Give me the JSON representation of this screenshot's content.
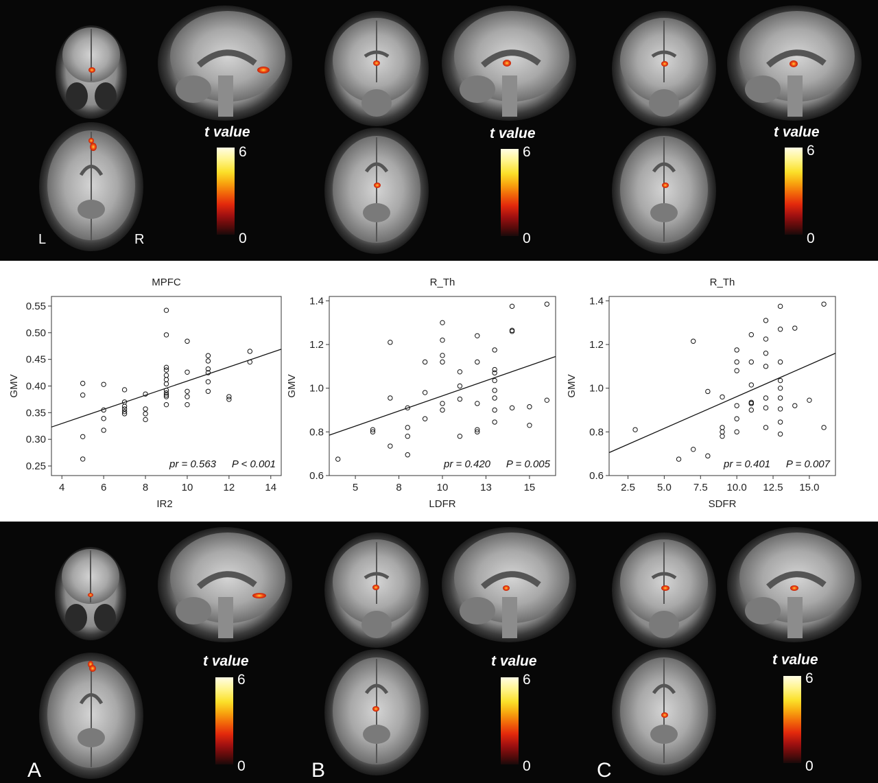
{
  "top_row": {
    "colorbars": [
      {
        "title": "t value",
        "max": "6",
        "min": "0"
      },
      {
        "title": "t value",
        "max": "6",
        "min": "0"
      },
      {
        "title": "t value",
        "max": "6",
        "min": "0"
      }
    ],
    "orientation": {
      "left": "L",
      "right": "R"
    }
  },
  "bottom_row": {
    "colorbars": [
      {
        "title": "t value",
        "max": "6",
        "min": "0"
      },
      {
        "title": "t value",
        "max": "6",
        "min": "0"
      },
      {
        "title": "t value",
        "max": "6",
        "min": "0"
      }
    ],
    "panel_labels": [
      "A",
      "B",
      "C"
    ]
  },
  "colors": {
    "background": "#070707",
    "activation": "#f04a12",
    "highlight": "#ffd23a"
  },
  "chart_data": [
    {
      "type": "scatter",
      "title": "MPFC",
      "xlabel": "IR2",
      "ylabel": "GMV",
      "xlim": [
        3.5,
        14.5
      ],
      "ylim": [
        0.232,
        0.568
      ],
      "xticks": [
        "4",
        "6",
        "8",
        "10",
        "12",
        "14"
      ],
      "xtick_values": [
        4,
        6,
        8,
        10,
        12,
        14
      ],
      "yticks": [
        "0.25",
        "0.30",
        "0.35",
        "0.40",
        "0.45",
        "0.50",
        "0.55"
      ],
      "ytick_values": [
        0.25,
        0.3,
        0.35,
        0.4,
        0.45,
        0.5,
        0.55
      ],
      "annotation_pr": "pr = 0.563",
      "annotation_p": "P < 0.001",
      "regression": {
        "x1": 3.5,
        "y1": 0.323,
        "x2": 14.5,
        "y2": 0.469
      },
      "points": [
        [
          5,
          0.405
        ],
        [
          5,
          0.383
        ],
        [
          5,
          0.305
        ],
        [
          5,
          0.263
        ],
        [
          6,
          0.403
        ],
        [
          6,
          0.355
        ],
        [
          6,
          0.339
        ],
        [
          6,
          0.317
        ],
        [
          7,
          0.393
        ],
        [
          7,
          0.37
        ],
        [
          7,
          0.362
        ],
        [
          7,
          0.357
        ],
        [
          7,
          0.352
        ],
        [
          7,
          0.348
        ],
        [
          8,
          0.385
        ],
        [
          8,
          0.357
        ],
        [
          8,
          0.348
        ],
        [
          8,
          0.337
        ],
        [
          9,
          0.542
        ],
        [
          9,
          0.496
        ],
        [
          9,
          0.435
        ],
        [
          9,
          0.43
        ],
        [
          9,
          0.42
        ],
        [
          9,
          0.412
        ],
        [
          9,
          0.404
        ],
        [
          9,
          0.392
        ],
        [
          9,
          0.387
        ],
        [
          9,
          0.383
        ],
        [
          9,
          0.38
        ],
        [
          9,
          0.365
        ],
        [
          10,
          0.484
        ],
        [
          10,
          0.426
        ],
        [
          10,
          0.39
        ],
        [
          10,
          0.38
        ],
        [
          10,
          0.365
        ],
        [
          11,
          0.457
        ],
        [
          11,
          0.447
        ],
        [
          11,
          0.432
        ],
        [
          11,
          0.425
        ],
        [
          11,
          0.408
        ],
        [
          11,
          0.39
        ],
        [
          12,
          0.38
        ],
        [
          12,
          0.375
        ],
        [
          13,
          0.465
        ],
        [
          13,
          0.445
        ]
      ]
    },
    {
      "type": "scatter",
      "title": "R_Th",
      "xlabel": "LDFR",
      "ylabel": "GMV",
      "xlim": [
        3.5,
        16.5
      ],
      "ylim": [
        0.6,
        1.42
      ],
      "xticks": [
        "5",
        "8",
        "10",
        "13",
        "15"
      ],
      "xtick_values": [
        5,
        7.5,
        10,
        12.5,
        15
      ],
      "yticks": [
        "0.6",
        "0.8",
        "1.0",
        "1.2",
        "1.4"
      ],
      "ytick_values": [
        0.6,
        0.8,
        1.0,
        1.2,
        1.4
      ],
      "annotation_pr": "pr = 0.420",
      "annotation_p": "P = 0.005",
      "regression": {
        "x1": 3.5,
        "y1": 0.785,
        "x2": 16.5,
        "y2": 1.145
      },
      "points": [
        [
          4,
          0.675
        ],
        [
          6,
          0.81
        ],
        [
          6,
          0.8
        ],
        [
          7,
          0.735
        ],
        [
          7,
          0.955
        ],
        [
          7,
          1.21
        ],
        [
          8,
          0.91
        ],
        [
          8,
          0.82
        ],
        [
          8,
          0.78
        ],
        [
          8,
          0.695
        ],
        [
          9,
          1.12
        ],
        [
          9,
          0.98
        ],
        [
          9,
          0.86
        ],
        [
          10,
          1.3
        ],
        [
          10,
          1.22
        ],
        [
          10,
          1.15
        ],
        [
          10,
          1.12
        ],
        [
          10,
          0.93
        ],
        [
          10,
          0.9
        ],
        [
          11,
          1.075
        ],
        [
          11,
          1.01
        ],
        [
          11,
          0.95
        ],
        [
          11,
          0.78
        ],
        [
          12,
          1.24
        ],
        [
          12,
          1.12
        ],
        [
          12,
          0.93
        ],
        [
          12,
          0.81
        ],
        [
          12,
          0.8
        ],
        [
          13,
          1.175
        ],
        [
          13,
          1.085
        ],
        [
          13,
          1.07
        ],
        [
          13,
          1.035
        ],
        [
          13,
          0.99
        ],
        [
          13,
          0.955
        ],
        [
          13,
          0.9
        ],
        [
          13,
          0.845
        ],
        [
          14,
          1.375
        ],
        [
          14,
          1.265
        ],
        [
          14,
          1.26
        ],
        [
          14,
          0.91
        ],
        [
          15,
          0.915
        ],
        [
          15,
          0.83
        ],
        [
          16,
          1.385
        ],
        [
          16,
          0.945
        ]
      ]
    },
    {
      "type": "scatter",
      "title": "R_Th",
      "xlabel": "SDFR",
      "ylabel": "GMV",
      "xlim": [
        1.2,
        16.8
      ],
      "ylim": [
        0.6,
        1.42
      ],
      "xticks": [
        "2.5",
        "5.0",
        "7.5",
        "10.0",
        "12.5",
        "15.0"
      ],
      "xtick_values": [
        2.5,
        5.0,
        7.5,
        10.0,
        12.5,
        15.0
      ],
      "yticks": [
        "0.6",
        "0.8",
        "1.0",
        "1.2",
        "1.4"
      ],
      "ytick_values": [
        0.6,
        0.8,
        1.0,
        1.2,
        1.4
      ],
      "annotation_pr": "pr = 0.401",
      "annotation_p": "P = 0.007",
      "regression": {
        "x1": 1.2,
        "y1": 0.705,
        "x2": 16.8,
        "y2": 1.16
      },
      "points": [
        [
          3,
          0.81
        ],
        [
          6,
          0.675
        ],
        [
          7,
          1.215
        ],
        [
          7,
          0.72
        ],
        [
          8,
          0.985
        ],
        [
          8,
          0.69
        ],
        [
          9,
          0.96
        ],
        [
          9,
          0.82
        ],
        [
          9,
          0.8
        ],
        [
          9,
          0.78
        ],
        [
          10,
          1.175
        ],
        [
          10,
          1.12
        ],
        [
          10,
          1.08
        ],
        [
          10,
          0.92
        ],
        [
          10,
          0.86
        ],
        [
          10,
          0.8
        ],
        [
          11,
          1.245
        ],
        [
          11,
          1.12
        ],
        [
          11,
          1.015
        ],
        [
          11,
          0.935
        ],
        [
          11,
          0.93
        ],
        [
          11,
          0.93
        ],
        [
          11,
          0.9
        ],
        [
          12,
          1.31
        ],
        [
          12,
          1.225
        ],
        [
          12,
          1.16
        ],
        [
          12,
          1.1
        ],
        [
          12,
          0.955
        ],
        [
          12,
          0.91
        ],
        [
          12,
          0.82
        ],
        [
          13,
          1.375
        ],
        [
          13,
          1.27
        ],
        [
          13,
          1.12
        ],
        [
          13,
          1.035
        ],
        [
          13,
          1.0
        ],
        [
          13,
          0.955
        ],
        [
          13,
          0.905
        ],
        [
          13,
          0.845
        ],
        [
          13,
          0.79
        ],
        [
          14,
          1.275
        ],
        [
          14,
          0.92
        ],
        [
          15,
          0.945
        ],
        [
          16,
          1.385
        ],
        [
          16,
          0.82
        ]
      ]
    }
  ]
}
